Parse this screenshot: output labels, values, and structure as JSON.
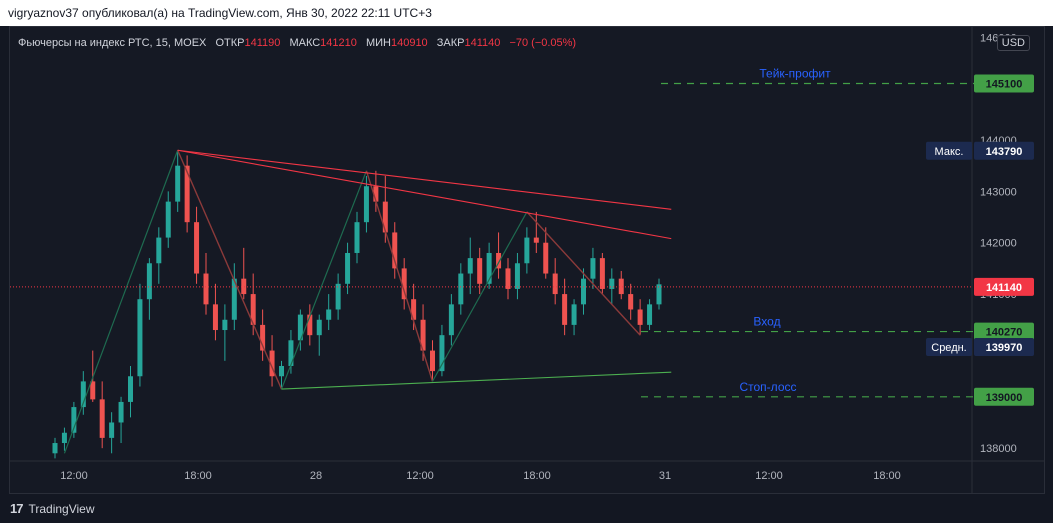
{
  "header": {
    "publish_line": "vigryaznov37 опубликовал(а) на TradingView.com, Янв 30, 2022 22:11 UTC+3"
  },
  "legend": {
    "symbol": "Фьючерсы на индекс РТС, 15, MOEX",
    "open_label": "ОТКР",
    "open_value": "141190",
    "high_label": "МАКС",
    "high_value": "141210",
    "low_label": "МИН",
    "low_value": "140910",
    "close_label": "ЗАКР",
    "close_value": "141140",
    "change": "−70 (−0.05%)"
  },
  "currency_label": "USD",
  "footer": {
    "brand": "TradingView"
  },
  "colors": {
    "up": "#26a69a",
    "down": "#ef5350",
    "background": "#151924",
    "level_line": "#43a047",
    "level_text": "#2962ff",
    "pattern_line": "#f23645",
    "pattern_green": "#26a69a",
    "support_line": "#4caf50"
  },
  "chart_data": {
    "type": "candlestick",
    "symbol": "Фьючерсы на индекс РТС",
    "interval": "15",
    "exchange": "MOEX",
    "ylim": [
      137750,
      146200
    ],
    "x_ticks": [
      "12:00",
      "18:00",
      "28",
      "12:00",
      "18:00",
      "31",
      "12:00",
      "18:00"
    ],
    "y_ticks": [
      138000,
      139000,
      140000,
      141000,
      142000,
      143000,
      144000,
      145000,
      146000
    ],
    "y_tick_labels": [
      "138000",
      "139000",
      "140000",
      "141000",
      "142000",
      "143000",
      "144000",
      "145000",
      "146000"
    ],
    "candles": [
      {
        "o": 137900,
        "h": 138200,
        "l": 137800,
        "c": 138100
      },
      {
        "o": 138100,
        "h": 138400,
        "l": 137950,
        "c": 138300
      },
      {
        "o": 138300,
        "h": 138900,
        "l": 138200,
        "c": 138800
      },
      {
        "o": 138800,
        "h": 139500,
        "l": 138650,
        "c": 139300
      },
      {
        "o": 139300,
        "h": 139900,
        "l": 138900,
        "c": 138950
      },
      {
        "o": 138950,
        "h": 139300,
        "l": 138000,
        "c": 138200
      },
      {
        "o": 138200,
        "h": 138700,
        "l": 137900,
        "c": 138500
      },
      {
        "o": 138500,
        "h": 139000,
        "l": 138100,
        "c": 138900
      },
      {
        "o": 138900,
        "h": 139600,
        "l": 138600,
        "c": 139400
      },
      {
        "o": 139400,
        "h": 141200,
        "l": 139200,
        "c": 140900
      },
      {
        "o": 140900,
        "h": 141700,
        "l": 140500,
        "c": 141600
      },
      {
        "o": 141600,
        "h": 142300,
        "l": 141200,
        "c": 142100
      },
      {
        "o": 142100,
        "h": 143000,
        "l": 141900,
        "c": 142800
      },
      {
        "o": 142800,
        "h": 143800,
        "l": 142600,
        "c": 143500
      },
      {
        "o": 143500,
        "h": 143700,
        "l": 142200,
        "c": 142400
      },
      {
        "o": 142400,
        "h": 142700,
        "l": 141200,
        "c": 141400
      },
      {
        "o": 141400,
        "h": 141800,
        "l": 140600,
        "c": 140800
      },
      {
        "o": 140800,
        "h": 141200,
        "l": 140100,
        "c": 140300
      },
      {
        "o": 140300,
        "h": 140800,
        "l": 139700,
        "c": 140500
      },
      {
        "o": 140500,
        "h": 141600,
        "l": 140300,
        "c": 141300
      },
      {
        "o": 141300,
        "h": 141900,
        "l": 140900,
        "c": 141000
      },
      {
        "o": 141000,
        "h": 141400,
        "l": 140200,
        "c": 140400
      },
      {
        "o": 140400,
        "h": 140700,
        "l": 139700,
        "c": 139900
      },
      {
        "o": 139900,
        "h": 140200,
        "l": 139200,
        "c": 139400
      },
      {
        "o": 139400,
        "h": 139700,
        "l": 139150,
        "c": 139600
      },
      {
        "o": 139600,
        "h": 140300,
        "l": 139450,
        "c": 140100
      },
      {
        "o": 140100,
        "h": 140700,
        "l": 139900,
        "c": 140600
      },
      {
        "o": 140600,
        "h": 140800,
        "l": 140000,
        "c": 140200
      },
      {
        "o": 140200,
        "h": 140600,
        "l": 139800,
        "c": 140500
      },
      {
        "o": 140500,
        "h": 141000,
        "l": 140300,
        "c": 140700
      },
      {
        "o": 140700,
        "h": 141400,
        "l": 140500,
        "c": 141200
      },
      {
        "o": 141200,
        "h": 142000,
        "l": 141000,
        "c": 141800
      },
      {
        "o": 141800,
        "h": 142600,
        "l": 141600,
        "c": 142400
      },
      {
        "o": 142400,
        "h": 143300,
        "l": 142200,
        "c": 143100
      },
      {
        "o": 143100,
        "h": 143400,
        "l": 142600,
        "c": 142800
      },
      {
        "o": 142800,
        "h": 143300,
        "l": 142000,
        "c": 142200
      },
      {
        "o": 142200,
        "h": 142400,
        "l": 141300,
        "c": 141500
      },
      {
        "o": 141500,
        "h": 141700,
        "l": 140700,
        "c": 140900
      },
      {
        "o": 140900,
        "h": 141200,
        "l": 140300,
        "c": 140500
      },
      {
        "o": 140500,
        "h": 140800,
        "l": 139700,
        "c": 139900
      },
      {
        "o": 139900,
        "h": 140100,
        "l": 139300,
        "c": 139500
      },
      {
        "o": 139500,
        "h": 140400,
        "l": 139400,
        "c": 140200
      },
      {
        "o": 140200,
        "h": 141000,
        "l": 140000,
        "c": 140800
      },
      {
        "o": 140800,
        "h": 141600,
        "l": 140600,
        "c": 141400
      },
      {
        "o": 141400,
        "h": 142100,
        "l": 141000,
        "c": 141700
      },
      {
        "o": 141700,
        "h": 141900,
        "l": 141000,
        "c": 141200
      },
      {
        "o": 141200,
        "h": 142000,
        "l": 141100,
        "c": 141800
      },
      {
        "o": 141800,
        "h": 142200,
        "l": 141300,
        "c": 141500
      },
      {
        "o": 141500,
        "h": 141700,
        "l": 140900,
        "c": 141100
      },
      {
        "o": 141100,
        "h": 141800,
        "l": 140900,
        "c": 141600
      },
      {
        "o": 141600,
        "h": 142300,
        "l": 141400,
        "c": 142100
      },
      {
        "o": 142100,
        "h": 142600,
        "l": 141800,
        "c": 142000
      },
      {
        "o": 142000,
        "h": 142300,
        "l": 141300,
        "c": 141400
      },
      {
        "o": 141400,
        "h": 141700,
        "l": 140800,
        "c": 141000
      },
      {
        "o": 141000,
        "h": 141300,
        "l": 140200,
        "c": 140400
      },
      {
        "o": 140400,
        "h": 140900,
        "l": 140200,
        "c": 140800
      },
      {
        "o": 140800,
        "h": 141500,
        "l": 140600,
        "c": 141300
      },
      {
        "o": 141300,
        "h": 141900,
        "l": 141100,
        "c": 141700
      },
      {
        "o": 141700,
        "h": 141800,
        "l": 141000,
        "c": 141100
      },
      {
        "o": 141100,
        "h": 141500,
        "l": 140800,
        "c": 141300
      },
      {
        "o": 141300,
        "h": 141450,
        "l": 140900,
        "c": 141000
      },
      {
        "o": 141000,
        "h": 141200,
        "l": 140500,
        "c": 140700
      },
      {
        "o": 140700,
        "h": 140900,
        "l": 140200,
        "c": 140400
      },
      {
        "o": 140400,
        "h": 140900,
        "l": 140300,
        "c": 140800
      },
      {
        "o": 140800,
        "h": 141300,
        "l": 140700,
        "c": 141190
      }
    ],
    "levels": [
      {
        "name": "Тейк-профит",
        "value": 145100,
        "label": "145100"
      },
      {
        "name": "Вход",
        "value": 140270,
        "label": "140270"
      },
      {
        "name": "Стоп-лосс",
        "value": 139000,
        "label": "139000"
      }
    ],
    "price_labels": [
      {
        "tag": "Макс.",
        "value": 143790,
        "label": "143790"
      },
      {
        "tag": "",
        "value": 141140,
        "label": "141140"
      },
      {
        "tag": "Средн.",
        "value": 139970,
        "label": "139970"
      }
    ],
    "current_price": 141140
  }
}
